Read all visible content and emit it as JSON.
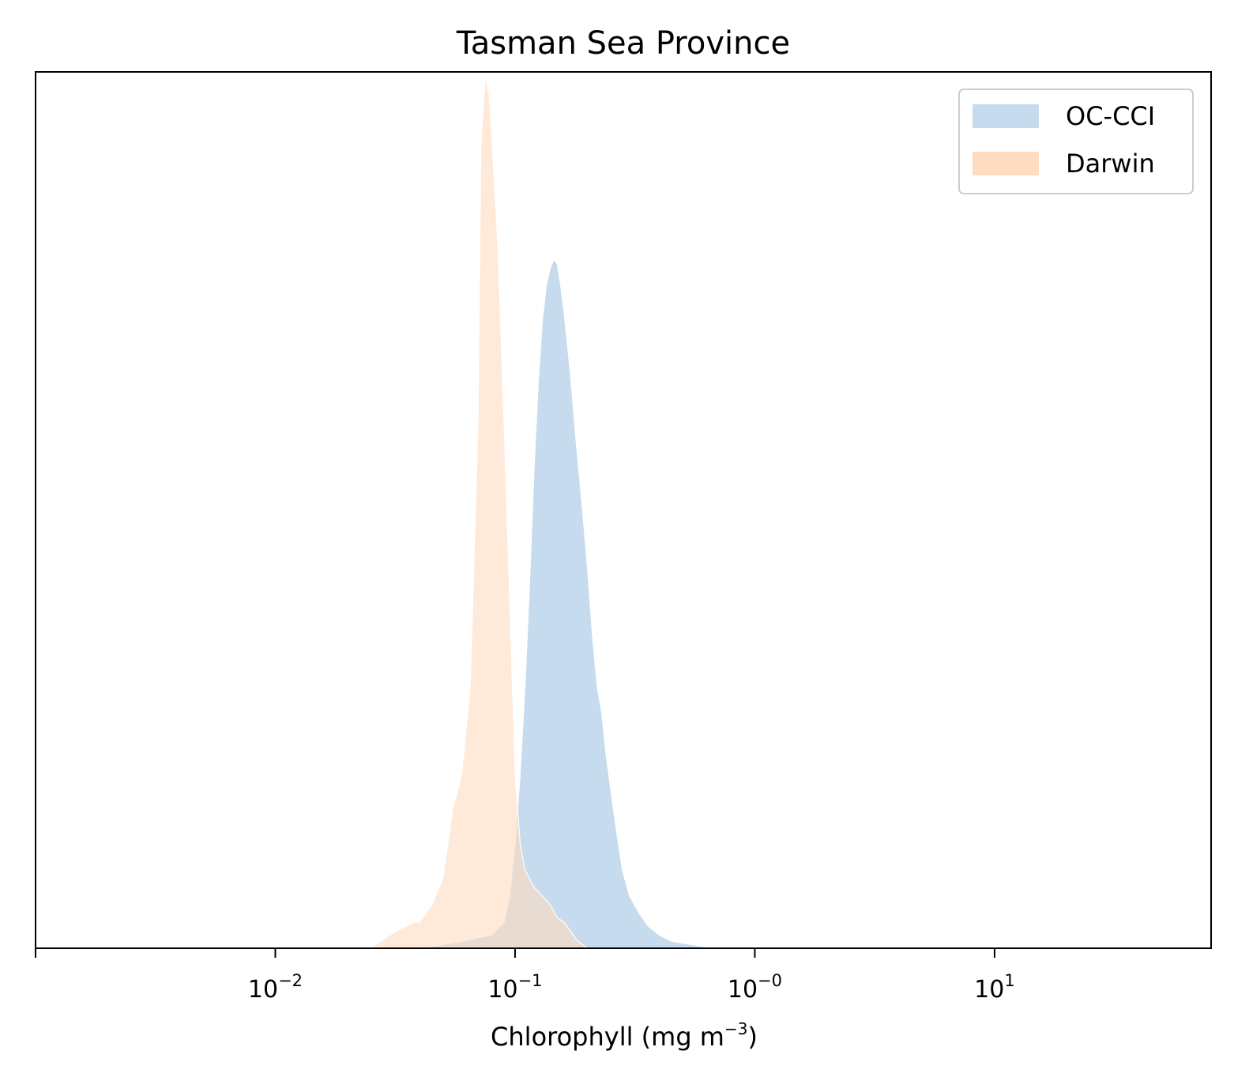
{
  "chart_data": {
    "type": "area",
    "title": "Tasman Sea Province",
    "xlabel": "Chlorophyll  (mg m",
    "xlabel_sup": "−3",
    "xlabel_end": ")",
    "x_scale": "log",
    "xlim": [
      0.001,
      80
    ],
    "ylim": [
      0,
      1.0
    ],
    "y_ticks_shown": false,
    "grid": false,
    "legend_position": "top-right",
    "xticks": [
      {
        "value": 0.01,
        "base": "10",
        "exp": "−2"
      },
      {
        "value": 0.1,
        "base": "10",
        "exp": "−1"
      },
      {
        "value": 1,
        "base": "10",
        "exp": "−0"
      },
      {
        "value": 10,
        "base": "10",
        "exp": "1"
      }
    ],
    "series": [
      {
        "name": "OC-CCI",
        "color": "#c6dbed",
        "x": [
          0.03,
          0.045,
          0.06,
          0.07,
          0.08,
          0.09,
          0.095,
          0.1,
          0.105,
          0.11,
          0.115,
          0.12,
          0.125,
          0.13,
          0.135,
          0.14,
          0.145,
          0.15,
          0.155,
          0.16,
          0.17,
          0.18,
          0.19,
          0.2,
          0.21,
          0.22,
          0.23,
          0.24,
          0.26,
          0.28,
          0.3,
          0.33,
          0.36,
          0.4,
          0.45,
          0.5,
          0.55,
          0.6,
          0.7,
          0.8
        ],
        "y": [
          0.0,
          0.002,
          0.008,
          0.012,
          0.015,
          0.03,
          0.06,
          0.12,
          0.2,
          0.3,
          0.42,
          0.55,
          0.65,
          0.72,
          0.76,
          0.78,
          0.79,
          0.785,
          0.76,
          0.73,
          0.66,
          0.58,
          0.51,
          0.44,
          0.36,
          0.3,
          0.27,
          0.22,
          0.15,
          0.09,
          0.06,
          0.04,
          0.025,
          0.015,
          0.008,
          0.006,
          0.004,
          0.002,
          0.001,
          0.0
        ]
      },
      {
        "name": "Darwin",
        "color": "#ffdcc0",
        "x": [
          0.025,
          0.03,
          0.032,
          0.035,
          0.038,
          0.04,
          0.045,
          0.05,
          0.055,
          0.06,
          0.065,
          0.07,
          0.072,
          0.075,
          0.078,
          0.08,
          0.085,
          0.09,
          0.095,
          0.1,
          0.105,
          0.11,
          0.12,
          0.13,
          0.14,
          0.15,
          0.16,
          0.17,
          0.18,
          0.2
        ],
        "y": [
          0.0,
          0.015,
          0.02,
          0.025,
          0.03,
          0.03,
          0.05,
          0.08,
          0.16,
          0.2,
          0.3,
          0.6,
          0.92,
          1.0,
          0.98,
          0.93,
          0.8,
          0.6,
          0.4,
          0.2,
          0.12,
          0.09,
          0.07,
          0.06,
          0.05,
          0.035,
          0.03,
          0.02,
          0.01,
          0.0
        ]
      }
    ]
  }
}
